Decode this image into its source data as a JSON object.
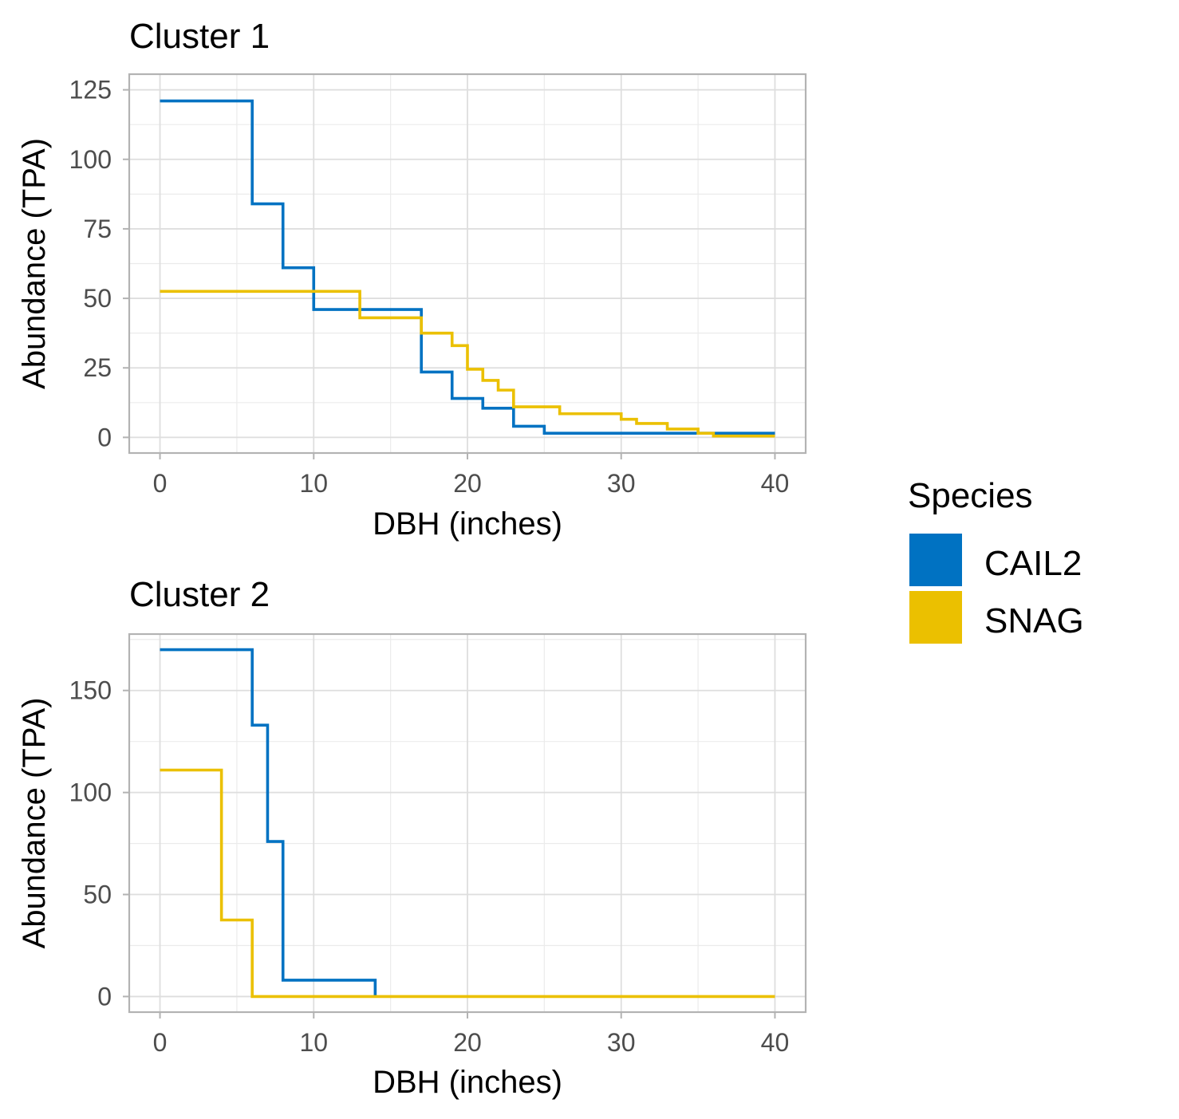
{
  "chart_data": [
    {
      "type": "line",
      "step": true,
      "title": "Cluster 1",
      "xlabel": "DBH (inches)",
      "ylabel": "Abundance (TPA)",
      "xlim": [
        0,
        40
      ],
      "ylim": [
        0,
        125
      ],
      "xticks": [
        0,
        10,
        20,
        30,
        40
      ],
      "yticks": [
        0,
        25,
        50,
        75,
        100,
        125
      ],
      "grid": true,
      "series": [
        {
          "name": "CAIL2",
          "color": "#0072C2",
          "points": [
            [
              0,
              121
            ],
            [
              6,
              121
            ],
            [
              6,
              84
            ],
            [
              8,
              84
            ],
            [
              8,
              61
            ],
            [
              10,
              61
            ],
            [
              10,
              46
            ],
            [
              17,
              46
            ],
            [
              17,
              23.5
            ],
            [
              19,
              23.5
            ],
            [
              19,
              14
            ],
            [
              21,
              14
            ],
            [
              21,
              10.5
            ],
            [
              23,
              10.5
            ],
            [
              23,
              4
            ],
            [
              25,
              4
            ],
            [
              25,
              1.5
            ],
            [
              40,
              1.5
            ]
          ]
        },
        {
          "name": "SNAG",
          "color": "#EBC000",
          "points": [
            [
              0,
              52.5
            ],
            [
              13,
              52.5
            ],
            [
              13,
              43
            ],
            [
              17,
              43
            ],
            [
              17,
              37.5
            ],
            [
              19,
              37.5
            ],
            [
              19,
              33
            ],
            [
              20,
              33
            ],
            [
              20,
              24.5
            ],
            [
              21,
              24.5
            ],
            [
              21,
              20.5
            ],
            [
              22,
              20.5
            ],
            [
              22,
              17
            ],
            [
              23,
              17
            ],
            [
              23,
              11
            ],
            [
              26,
              11
            ],
            [
              26,
              8.5
            ],
            [
              30,
              8.5
            ],
            [
              30,
              6.5
            ],
            [
              31,
              6.5
            ],
            [
              31,
              5
            ],
            [
              33,
              5
            ],
            [
              33,
              3
            ],
            [
              35,
              3
            ],
            [
              35,
              1.5
            ],
            [
              36,
              1.5
            ],
            [
              36,
              0.5
            ],
            [
              40,
              0.5
            ]
          ]
        }
      ]
    },
    {
      "type": "line",
      "step": true,
      "title": "Cluster 2",
      "xlabel": "DBH (inches)",
      "ylabel": "Abundance (TPA)",
      "xlim": [
        0,
        40
      ],
      "ylim": [
        0,
        170
      ],
      "xticks": [
        0,
        10,
        20,
        30,
        40
      ],
      "yticks": [
        0,
        50,
        100,
        150
      ],
      "grid": true,
      "series": [
        {
          "name": "CAIL2",
          "color": "#0072C2",
          "points": [
            [
              0,
              170
            ],
            [
              6,
              170
            ],
            [
              6,
              133
            ],
            [
              7,
              133
            ],
            [
              7,
              76
            ],
            [
              8,
              76
            ],
            [
              8,
              8
            ],
            [
              14,
              8
            ],
            [
              14,
              0
            ]
          ]
        },
        {
          "name": "SNAG",
          "color": "#EBC000",
          "points": [
            [
              0,
              111
            ],
            [
              4,
              111
            ],
            [
              4,
              37.5
            ],
            [
              6,
              37.5
            ],
            [
              6,
              0
            ],
            [
              40,
              0
            ]
          ]
        }
      ]
    }
  ],
  "legend": {
    "title": "Species",
    "placement": "right",
    "items": [
      {
        "label": "CAIL2",
        "color": "#0072C2"
      },
      {
        "label": "SNAG",
        "color": "#EBC000"
      }
    ]
  }
}
